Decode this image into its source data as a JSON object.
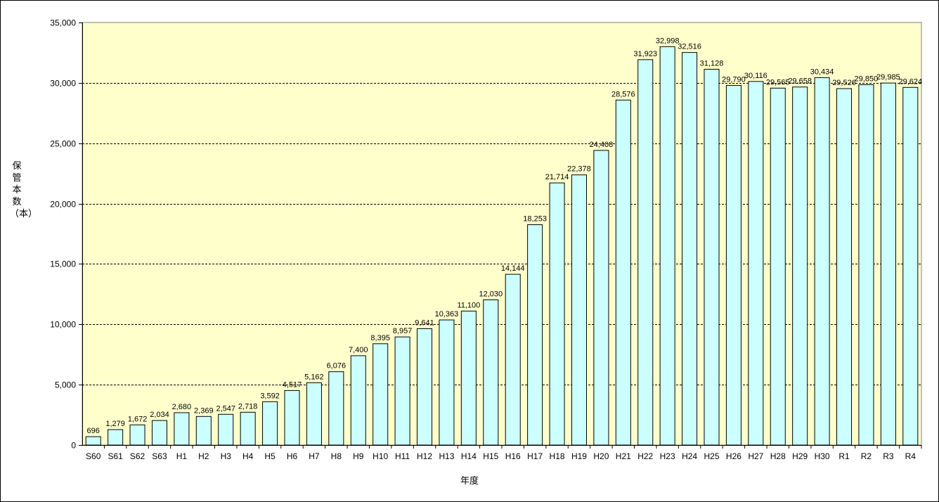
{
  "chart_data": {
    "type": "bar",
    "xlabel": "年度",
    "ylabel": "保管本数（本）",
    "ylim": [
      0,
      35000
    ],
    "yticks": [
      "0",
      "5,000",
      "10,000",
      "15,000",
      "20,000",
      "25,000",
      "30,000",
      "35,000"
    ],
    "grid": "horizontal dashed",
    "colors": {
      "plot_bg": "#ffffcc",
      "bar_fill": "#ccffff",
      "bar_stroke": "#000000"
    },
    "categories": [
      "S60",
      "S61",
      "S62",
      "S63",
      "H1",
      "H2",
      "H3",
      "H4",
      "H5",
      "H6",
      "H7",
      "H8",
      "H9",
      "H10",
      "H11",
      "H12",
      "H13",
      "H14",
      "H15",
      "H16",
      "H17",
      "H18",
      "H19",
      "H20",
      "H21",
      "H22",
      "H23",
      "H24",
      "H25",
      "H26",
      "H27",
      "H28",
      "H29",
      "H30",
      "R1",
      "R2",
      "R3",
      "R4"
    ],
    "values": [
      696,
      1279,
      1672,
      2034,
      2680,
      2369,
      2547,
      2718,
      3592,
      4517,
      5162,
      6076,
      7400,
      8395,
      8957,
      9641,
      10363,
      11100,
      12030,
      14144,
      18253,
      21714,
      22378,
      24408,
      28576,
      31923,
      32998,
      32516,
      31128,
      29790,
      30116,
      29565,
      29658,
      30434,
      29526,
      29850,
      29985,
      29624
    ],
    "value_labels": [
      "696",
      "1,279",
      "1,672",
      "2,034",
      "2,680",
      "2,369",
      "2,547",
      "2,718",
      "3,592",
      "4,517",
      "5,162",
      "6,076",
      "7,400",
      "8,395",
      "8,957",
      "9,641",
      "10,363",
      "11,100",
      "12,030",
      "14,144",
      "18,253",
      "21,714",
      "22,378",
      "24,408",
      "28,576",
      "31,923",
      "32,998",
      "32,516",
      "31,128",
      "29,790",
      "30,116",
      "29,565",
      "29,658",
      "30,434",
      "29,526",
      "29,850",
      "29,985",
      "29,624"
    ]
  }
}
